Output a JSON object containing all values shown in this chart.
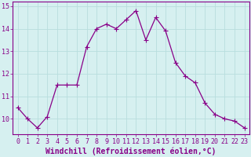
{
  "x": [
    0,
    1,
    2,
    3,
    4,
    5,
    6,
    7,
    8,
    9,
    10,
    11,
    12,
    13,
    14,
    15,
    16,
    17,
    18,
    19,
    20,
    21,
    22,
    23
  ],
  "y": [
    10.5,
    10.0,
    9.6,
    10.1,
    11.5,
    11.5,
    11.5,
    13.2,
    14.0,
    14.2,
    14.0,
    14.4,
    14.8,
    13.5,
    14.5,
    13.9,
    12.5,
    11.9,
    11.6,
    10.7,
    10.2,
    10.0,
    9.9,
    9.6
  ],
  "line_color": "#880088",
  "marker": "+",
  "marker_size": 4,
  "bg_color": "#d6f0f0",
  "grid_color": "#b8dede",
  "xlabel": "Windchill (Refroidissement éolien,°C)",
  "ylim": [
    9.3,
    15.2
  ],
  "xlim": [
    -0.5,
    23.5
  ],
  "yticks": [
    10,
    11,
    12,
    13,
    14,
    15
  ],
  "xticks": [
    0,
    1,
    2,
    3,
    4,
    5,
    6,
    7,
    8,
    9,
    10,
    11,
    12,
    13,
    14,
    15,
    16,
    17,
    18,
    19,
    20,
    21,
    22,
    23
  ],
  "tick_fontsize": 6.0,
  "xlabel_fontsize": 7.0,
  "linewidth": 0.9
}
